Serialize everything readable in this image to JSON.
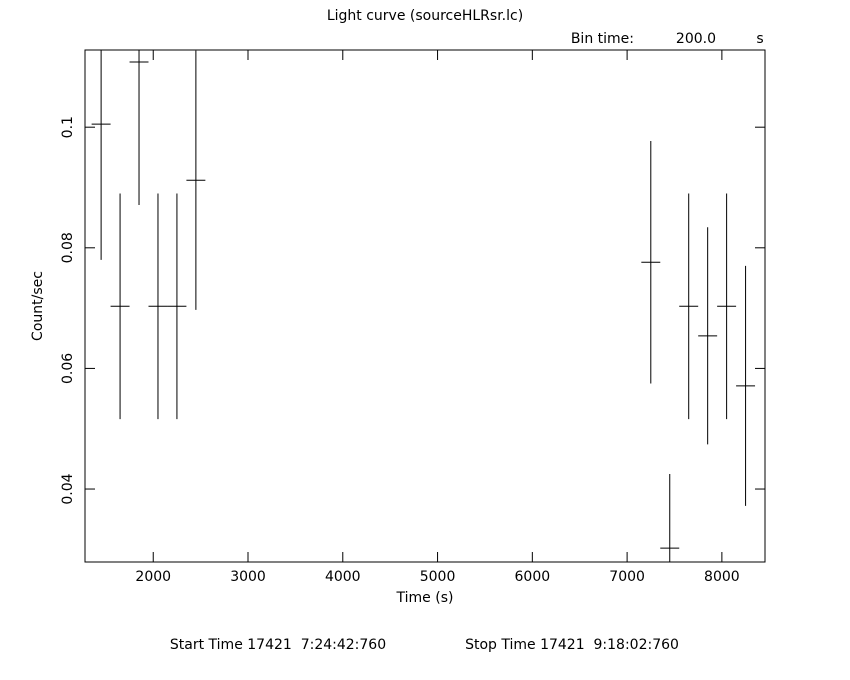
{
  "chart_data": {
    "type": "errorbar",
    "title": "Light curve (sourceHLRsr.lc)",
    "bin_time_label": "Bin time:",
    "bin_time": "200.0",
    "bin_time_unit": "s",
    "xlabel": "Time (s)",
    "ylabel": "Count/sec",
    "x": [
      1450,
      1650,
      1850,
      2050,
      2250,
      2450,
      7250,
      7450,
      7650,
      7850,
      8050,
      8250
    ],
    "xerr": [
      100,
      100,
      100,
      100,
      100,
      100,
      100,
      100,
      100,
      100,
      100,
      100
    ],
    "values": [
      0.1005,
      0.0703,
      0.1108,
      0.0703,
      0.0703,
      0.0912,
      0.0776,
      0.0302,
      0.0703,
      0.0654,
      0.0703,
      0.0571
    ],
    "yerr": [
      0.0225,
      0.0187,
      0.0237,
      0.0187,
      0.0187,
      0.0215,
      0.0201,
      0.0123,
      0.0187,
      0.018,
      0.0187,
      0.0199
    ],
    "color": "#000000",
    "xlim": [
      1280,
      8455
    ],
    "ylim": [
      0.0279,
      0.1128
    ],
    "xticks": [
      2000,
      3000,
      4000,
      5000,
      6000,
      7000,
      8000
    ],
    "yticks": [
      0.04,
      0.06,
      0.08,
      0.1
    ],
    "start_time": "Start Time 17421  7:24:42:760",
    "stop_time": "Stop Time 17421  9:18:02:760"
  }
}
